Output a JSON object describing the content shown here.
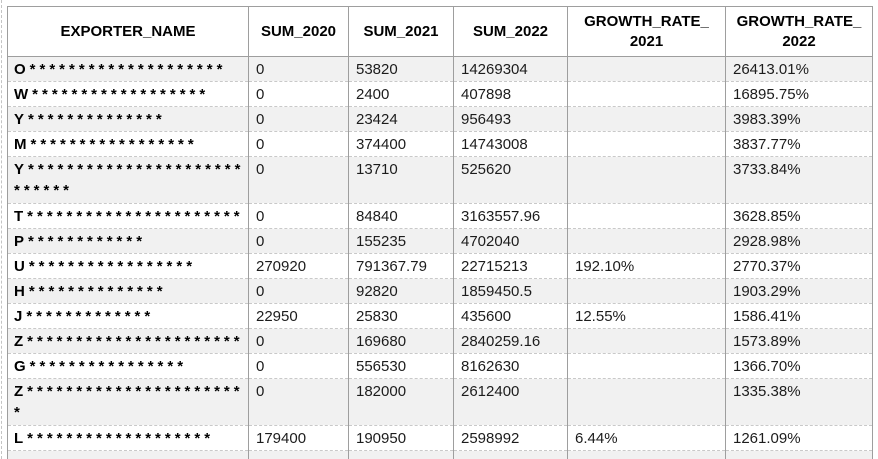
{
  "colors": {
    "row_stripe": "#f1f1f1",
    "grid_vertical": "#9e9e9e",
    "grid_horizontal_dashed": "#c9c9c9",
    "outer_border": "#9e9e9e",
    "header_text": "#000000",
    "body_text": "#1c1c1c"
  },
  "table": {
    "headers": [
      {
        "line1": "EXPORTER_NAME",
        "line2": ""
      },
      {
        "line1": "SUM_2020",
        "line2": ""
      },
      {
        "line1": "SUM_2021",
        "line2": ""
      },
      {
        "line1": "SUM_2022",
        "line2": ""
      },
      {
        "line1": "GROWTH_RATE_",
        "line2": "2021"
      },
      {
        "line1": "GROWTH_RATE_",
        "line2": "2022"
      }
    ],
    "rows": [
      {
        "exporter": "O********************",
        "sum_2020": "0",
        "sum_2021": "53820",
        "sum_2022": "14269304",
        "growth_rate_2021": "",
        "growth_rate_2022": "26413.01%"
      },
      {
        "exporter": "W******************",
        "sum_2020": "0",
        "sum_2021": "2400",
        "sum_2022": "407898",
        "growth_rate_2021": "",
        "growth_rate_2022": "16895.75%"
      },
      {
        "exporter": "Y**************",
        "sum_2020": "0",
        "sum_2021": "23424",
        "sum_2022": "956493",
        "growth_rate_2021": "",
        "growth_rate_2022": "3983.39%"
      },
      {
        "exporter": "M*****************",
        "sum_2020": "0",
        "sum_2021": "374400",
        "sum_2022": "14743008",
        "growth_rate_2021": "",
        "growth_rate_2022": "3837.77%"
      },
      {
        "exporter": "Y****************************",
        "sum_2020": "0",
        "sum_2021": "13710",
        "sum_2022": "525620",
        "growth_rate_2021": "",
        "growth_rate_2022": "3733.84%"
      },
      {
        "exporter": "T**********************",
        "sum_2020": "0",
        "sum_2021": "84840",
        "sum_2022": "3163557.96",
        "growth_rate_2021": "",
        "growth_rate_2022": "3628.85%"
      },
      {
        "exporter": "P************",
        "sum_2020": "0",
        "sum_2021": "155235",
        "sum_2022": "4702040",
        "growth_rate_2021": "",
        "growth_rate_2022": "2928.98%"
      },
      {
        "exporter": "U*****************",
        "sum_2020": "270920",
        "sum_2021": "791367.79",
        "sum_2022": "22715213",
        "growth_rate_2021": "192.10%",
        "growth_rate_2022": "2770.37%"
      },
      {
        "exporter": "H**************",
        "sum_2020": "0",
        "sum_2021": "92820",
        "sum_2022": "1859450.5",
        "growth_rate_2021": "",
        "growth_rate_2022": "1903.29%"
      },
      {
        "exporter": "J*************",
        "sum_2020": "22950",
        "sum_2021": "25830",
        "sum_2022": "435600",
        "growth_rate_2021": "12.55%",
        "growth_rate_2022": "1586.41%"
      },
      {
        "exporter": "Z**********************",
        "sum_2020": "0",
        "sum_2021": "169680",
        "sum_2022": "2840259.16",
        "growth_rate_2021": "",
        "growth_rate_2022": "1573.89%"
      },
      {
        "exporter": "G****************",
        "sum_2020": "0",
        "sum_2021": "556530",
        "sum_2022": "8162630",
        "growth_rate_2021": "",
        "growth_rate_2022": "1366.70%"
      },
      {
        "exporter": "Z***********************",
        "sum_2020": "0",
        "sum_2021": "182000",
        "sum_2022": "2612400",
        "growth_rate_2021": "",
        "growth_rate_2022": "1335.38%"
      },
      {
        "exporter": "L*******************",
        "sum_2020": "179400",
        "sum_2021": "190950",
        "sum_2022": "2598992",
        "growth_rate_2021": "6.44%",
        "growth_rate_2022": "1261.09%"
      }
    ]
  }
}
